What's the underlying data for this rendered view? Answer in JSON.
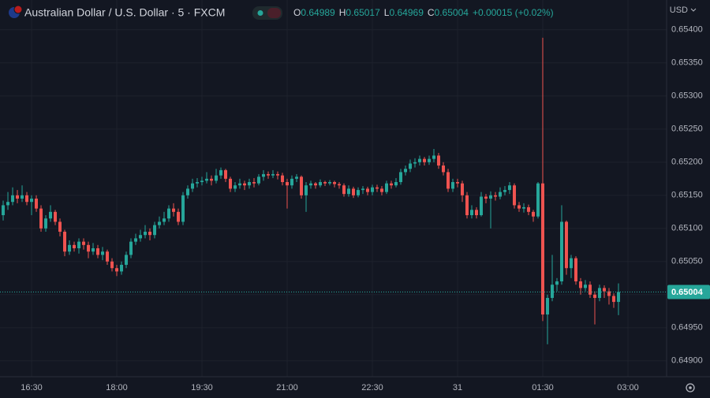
{
  "chart_data": {
    "type": "candlestick",
    "title": "Australian Dollar / U.S. Dollar · 5 · FXCM",
    "currency": "USD",
    "ohlc_labels": [
      "O",
      "H",
      "L",
      "C"
    ],
    "change_label": "+0.00015 (+0.02%)",
    "up_color": "#26a69a",
    "down_color": "#ef5350",
    "grid": true,
    "xlim": [
      -0.67,
      140.17
    ],
    "xticks": [
      {
        "value": 6,
        "label": "16:30"
      },
      {
        "value": 24,
        "label": "18:00"
      },
      {
        "value": 42,
        "label": "19:30"
      },
      {
        "value": 60,
        "label": "21:00"
      },
      {
        "value": 78,
        "label": "22:30"
      },
      {
        "value": 96,
        "label": "31"
      },
      {
        "value": 114,
        "label": "01:30"
      },
      {
        "value": 132,
        "label": "03:00"
      }
    ],
    "ylim": [
      0.64876,
      0.65445
    ],
    "yticks": [
      {
        "value": 0.649,
        "label": "0.64900"
      },
      {
        "value": 0.6495,
        "label": "0.64950"
      },
      {
        "value": 0.65,
        "label": "0.65000"
      },
      {
        "value": 0.6505,
        "label": "0.65050"
      },
      {
        "value": 0.651,
        "label": "0.65100"
      },
      {
        "value": 0.6515,
        "label": "0.65150"
      },
      {
        "value": 0.652,
        "label": "0.65200"
      },
      {
        "value": 0.6525,
        "label": "0.65250"
      },
      {
        "value": 0.653,
        "label": "0.65300"
      },
      {
        "value": 0.6535,
        "label": "0.65350"
      },
      {
        "value": 0.654,
        "label": "0.65400"
      }
    ],
    "open": [
      0.6512,
      0.65135,
      0.6514,
      0.6515,
      0.65145,
      0.6515,
      0.6514,
      0.65145,
      0.6513,
      0.651,
      0.65115,
      0.65125,
      0.6511,
      0.65095,
      0.65065,
      0.65075,
      0.6507,
      0.6508,
      0.65075,
      0.65065,
      0.6507,
      0.6506,
      0.65065,
      0.6505,
      0.6504,
      0.65035,
      0.65045,
      0.6506,
      0.6508,
      0.65085,
      0.6509,
      0.65095,
      0.6509,
      0.65105,
      0.6511,
      0.65115,
      0.6513,
      0.65125,
      0.6511,
      0.6515,
      0.6516,
      0.65168,
      0.6517,
      0.65172,
      0.65175,
      0.65172,
      0.6518,
      0.65188,
      0.65175,
      0.6516,
      0.65165,
      0.65168,
      0.65165,
      0.6517,
      0.65168,
      0.65178,
      0.65182,
      0.6518,
      0.65182,
      0.6518,
      0.6517,
      0.65165,
      0.65175,
      0.65178,
      0.6515,
      0.65165,
      0.65168,
      0.65165,
      0.6517,
      0.65168,
      0.6517,
      0.65167,
      0.65165,
      0.65152,
      0.6516,
      0.6515,
      0.65158,
      0.6516,
      0.65155,
      0.65162,
      0.6516,
      0.65155,
      0.65168,
      0.65165,
      0.6517,
      0.65185,
      0.6519,
      0.65198,
      0.652,
      0.65205,
      0.652,
      0.65205,
      0.6521,
      0.65195,
      0.65185,
      0.6516,
      0.6517,
      0.65168,
      0.6515,
      0.6512,
      0.65128,
      0.6512,
      0.65148,
      0.65145,
      0.6515,
      0.65148,
      0.65155,
      0.65158,
      0.65165,
      0.65135,
      0.6513,
      0.65132,
      0.65125,
      0.65118,
      0.65168,
      0.6497,
      0.64995,
      0.65015,
      0.6502,
      0.6511,
      0.6504,
      0.65055,
      0.6502,
      0.6501,
      0.65015,
      0.65,
      0.64995,
      0.6501,
      0.65005,
      0.64998,
      0.64989
    ],
    "high": [
      0.65142,
      0.65155,
      0.65162,
      0.65158,
      0.65165,
      0.65155,
      0.6515,
      0.6515,
      0.65135,
      0.6512,
      0.65135,
      0.65128,
      0.65115,
      0.65098,
      0.65082,
      0.6508,
      0.65085,
      0.65085,
      0.6508,
      0.65078,
      0.65075,
      0.65072,
      0.65068,
      0.65055,
      0.65045,
      0.6505,
      0.65065,
      0.65085,
      0.65092,
      0.65098,
      0.65105,
      0.651,
      0.6511,
      0.65118,
      0.65125,
      0.65135,
      0.65138,
      0.6513,
      0.65155,
      0.65165,
      0.65175,
      0.65176,
      0.65178,
      0.65185,
      0.6518,
      0.6519,
      0.65192,
      0.6519,
      0.65178,
      0.6517,
      0.65175,
      0.65172,
      0.65175,
      0.65176,
      0.65182,
      0.65188,
      0.65186,
      0.65188,
      0.65186,
      0.65184,
      0.65175,
      0.6518,
      0.65182,
      0.6518,
      0.6517,
      0.65172,
      0.6517,
      0.65174,
      0.65172,
      0.65173,
      0.65172,
      0.6517,
      0.65168,
      0.65165,
      0.65163,
      0.65162,
      0.65164,
      0.65163,
      0.65166,
      0.65166,
      0.65164,
      0.65172,
      0.65172,
      0.65176,
      0.6519,
      0.65195,
      0.65204,
      0.65206,
      0.6521,
      0.65208,
      0.6521,
      0.6522,
      0.65214,
      0.652,
      0.6519,
      0.65175,
      0.65175,
      0.65172,
      0.65155,
      0.65135,
      0.65132,
      0.65155,
      0.65152,
      0.65156,
      0.65155,
      0.65162,
      0.65164,
      0.6517,
      0.65168,
      0.6514,
      0.65138,
      0.65136,
      0.65128,
      0.6517,
      0.65388,
      0.65,
      0.6506,
      0.65025,
      0.65135,
      0.65112,
      0.6506,
      0.65058,
      0.65025,
      0.65022,
      0.6502,
      0.65005,
      0.65015,
      0.65014,
      0.6501,
      0.65002,
      0.65017
    ],
    "low": [
      0.65112,
      0.65128,
      0.65135,
      0.65138,
      0.6514,
      0.65135,
      0.6512,
      0.65125,
      0.65095,
      0.65095,
      0.6511,
      0.65105,
      0.65088,
      0.65058,
      0.6506,
      0.65065,
      0.65062,
      0.65068,
      0.65055,
      0.6506,
      0.65055,
      0.65052,
      0.65045,
      0.65035,
      0.65028,
      0.6503,
      0.6504,
      0.65055,
      0.65075,
      0.6508,
      0.65085,
      0.65082,
      0.65085,
      0.651,
      0.65105,
      0.6511,
      0.65118,
      0.65105,
      0.65105,
      0.65145,
      0.65155,
      0.65162,
      0.65165,
      0.65168,
      0.65165,
      0.65168,
      0.65175,
      0.6517,
      0.65155,
      0.65155,
      0.6516,
      0.65158,
      0.6516,
      0.65162,
      0.65165,
      0.65172,
      0.65175,
      0.65176,
      0.65174,
      0.65165,
      0.6513,
      0.6516,
      0.6517,
      0.65145,
      0.65125,
      0.6516,
      0.6516,
      0.65162,
      0.65164,
      0.65165,
      0.65162,
      0.6516,
      0.65148,
      0.65148,
      0.65146,
      0.65147,
      0.65152,
      0.6515,
      0.6515,
      0.65155,
      0.6515,
      0.65152,
      0.6516,
      0.65162,
      0.65166,
      0.6518,
      0.65185,
      0.65192,
      0.65195,
      0.65195,
      0.65196,
      0.652,
      0.6519,
      0.6518,
      0.65155,
      0.65155,
      0.65162,
      0.6514,
      0.65115,
      0.65115,
      0.65115,
      0.65118,
      0.65138,
      0.651,
      0.65142,
      0.65144,
      0.6515,
      0.65152,
      0.6513,
      0.65125,
      0.65124,
      0.6512,
      0.6511,
      0.65115,
      0.6496,
      0.64925,
      0.6499,
      0.65005,
      0.65015,
      0.6503,
      0.65025,
      0.65015,
      0.65,
      0.65005,
      0.64995,
      0.64955,
      0.6499,
      0.64995,
      0.64985,
      0.6498,
      0.64969
    ],
    "close": [
      0.65135,
      0.6514,
      0.6515,
      0.65145,
      0.6515,
      0.6514,
      0.65145,
      0.6513,
      0.651,
      0.65115,
      0.65125,
      0.6511,
      0.65095,
      0.65065,
      0.65075,
      0.6507,
      0.6508,
      0.65075,
      0.65065,
      0.6507,
      0.6506,
      0.65065,
      0.6505,
      0.6504,
      0.65035,
      0.65045,
      0.6506,
      0.6508,
      0.65085,
      0.6509,
      0.65095,
      0.6509,
      0.65105,
      0.6511,
      0.65115,
      0.6513,
      0.65125,
      0.6511,
      0.6515,
      0.6516,
      0.65168,
      0.6517,
      0.65172,
      0.65175,
      0.65172,
      0.6518,
      0.65188,
      0.65175,
      0.6516,
      0.65165,
      0.65168,
      0.65165,
      0.6517,
      0.65168,
      0.65178,
      0.65182,
      0.6518,
      0.65182,
      0.6518,
      0.6517,
      0.65165,
      0.65175,
      0.65178,
      0.6515,
      0.65165,
      0.65168,
      0.65165,
      0.6517,
      0.65168,
      0.6517,
      0.65167,
      0.65165,
      0.65152,
      0.6516,
      0.6515,
      0.65158,
      0.6516,
      0.65155,
      0.65162,
      0.6516,
      0.65155,
      0.65168,
      0.65165,
      0.6517,
      0.65185,
      0.6519,
      0.65198,
      0.652,
      0.65205,
      0.652,
      0.65205,
      0.6521,
      0.65195,
      0.65185,
      0.6516,
      0.6517,
      0.65168,
      0.6515,
      0.6512,
      0.65128,
      0.6512,
      0.65148,
      0.65145,
      0.6515,
      0.65148,
      0.65155,
      0.65158,
      0.65165,
      0.65135,
      0.6513,
      0.65132,
      0.65125,
      0.65118,
      0.65168,
      0.6497,
      0.64995,
      0.65015,
      0.6502,
      0.6511,
      0.6504,
      0.65055,
      0.6502,
      0.6501,
      0.65015,
      0.65,
      0.64995,
      0.6501,
      0.65005,
      0.64998,
      0.64989,
      0.65004
    ]
  }
}
